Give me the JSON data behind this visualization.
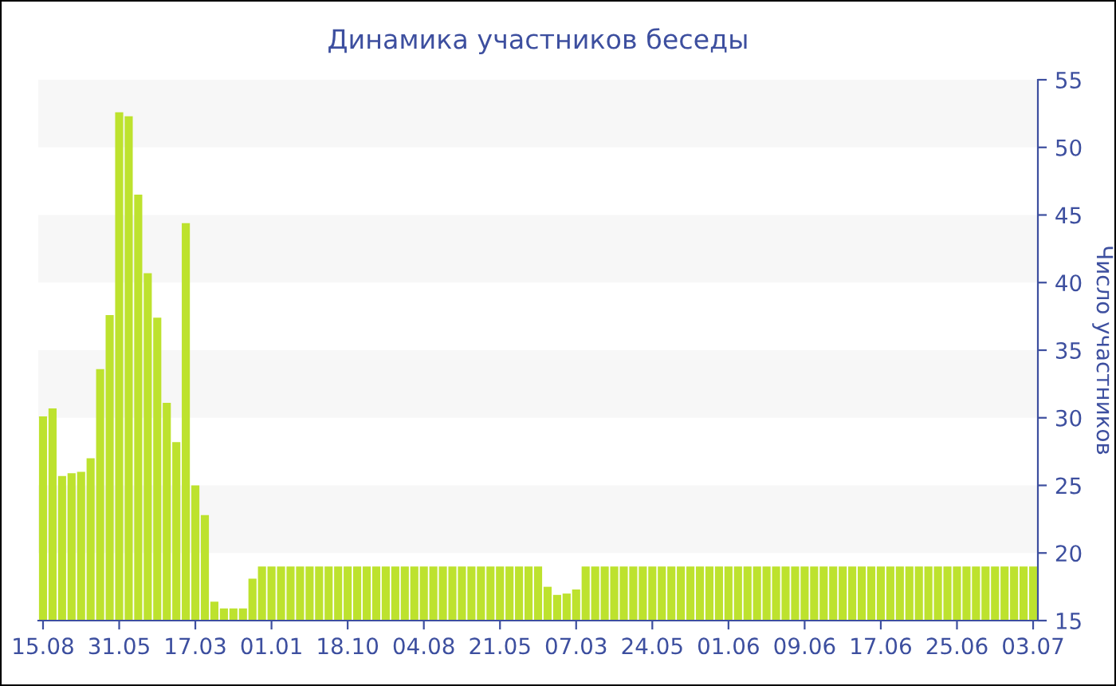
{
  "chart_data": {
    "type": "bar",
    "title": "Динамика участников беседы",
    "ylabel": "Число участников",
    "categories": [
      "15.08",
      null,
      null,
      null,
      null,
      null,
      null,
      null,
      "31.05",
      null,
      null,
      null,
      null,
      null,
      null,
      null,
      "17.03",
      null,
      null,
      null,
      null,
      null,
      null,
      null,
      "01.01",
      null,
      null,
      null,
      null,
      null,
      null,
      null,
      "18.10",
      null,
      null,
      null,
      null,
      null,
      null,
      null,
      "04.08",
      null,
      null,
      null,
      null,
      null,
      null,
      null,
      "21.05",
      null,
      null,
      null,
      null,
      null,
      null,
      null,
      "07.03",
      null,
      null,
      null,
      null,
      null,
      null,
      null,
      "24.05",
      null,
      null,
      null,
      null,
      null,
      null,
      null,
      "01.06",
      null,
      null,
      null,
      null,
      null,
      null,
      null,
      "09.06",
      null,
      null,
      null,
      null,
      null,
      null,
      null,
      "17.06",
      null,
      null,
      null,
      null,
      null,
      null,
      null,
      "25.06",
      null,
      null,
      null,
      null,
      null,
      null,
      null,
      "03.07"
    ],
    "values": [
      30.1,
      30.7,
      25.7,
      25.9,
      26,
      27,
      33.6,
      37.6,
      52.6,
      52.3,
      46.5,
      40.7,
      37.4,
      31.1,
      28.2,
      44.4,
      25,
      22.8,
      16.4,
      15.9,
      15.9,
      15.9,
      18.1,
      19,
      19,
      19,
      19,
      19,
      19,
      19,
      19,
      19,
      19,
      19,
      19,
      19,
      19,
      19,
      19,
      19,
      19,
      19,
      19,
      19,
      19,
      19,
      19,
      19,
      19,
      19,
      19,
      19,
      19,
      17.5,
      16.9,
      17,
      17.3,
      19,
      19,
      19,
      19,
      19,
      19,
      19,
      19,
      19,
      19,
      19,
      19,
      19,
      19,
      19,
      19,
      19,
      19,
      19,
      19,
      19,
      19,
      19,
      19,
      19,
      19,
      19,
      19,
      19,
      19,
      19,
      19,
      19,
      19,
      19,
      19,
      19,
      19,
      19,
      19,
      19,
      19,
      19,
      19,
      19,
      19,
      19,
      19
    ],
    "color": "#bde22e",
    "ylim": [
      15,
      55
    ],
    "yticks": [
      15,
      20,
      25,
      30,
      35,
      40,
      45,
      50,
      55
    ],
    "bands": [
      {
        "axis": "y",
        "from": 20,
        "to": 25,
        "color": "#f7f7f7"
      },
      {
        "axis": "y",
        "from": 30,
        "to": 35,
        "color": "#f7f7f7"
      },
      {
        "axis": "y",
        "from": 40,
        "to": 45,
        "color": "#f7f7f7"
      },
      {
        "axis": "y",
        "from": 50,
        "to": 55,
        "color": "#f7f7f7"
      }
    ],
    "legend": false
  }
}
